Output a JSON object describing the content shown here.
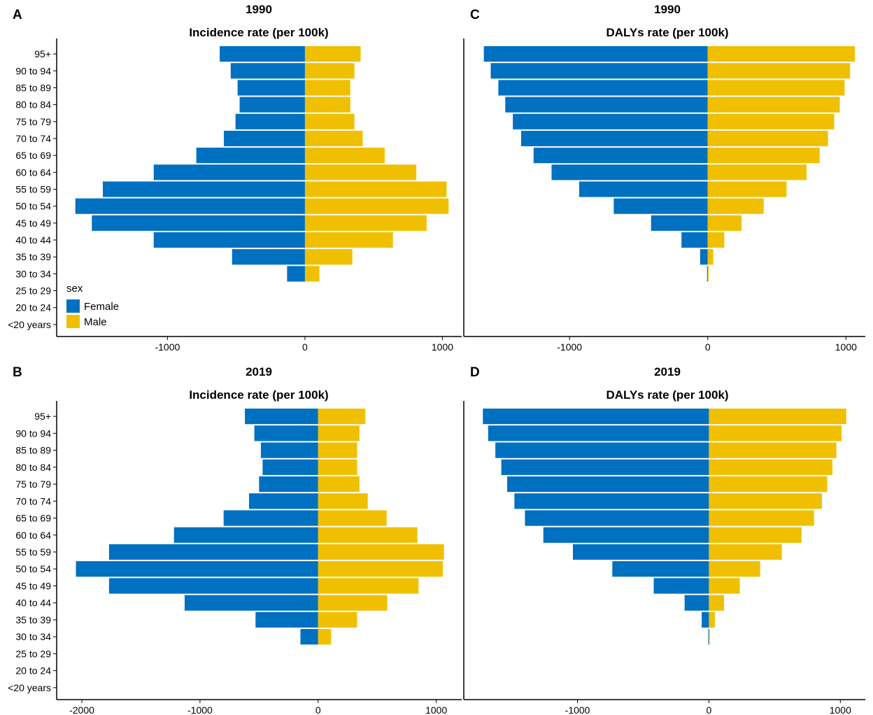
{
  "colors": {
    "female": "#0070C0",
    "male": "#F0C000"
  },
  "legend": {
    "title": "sex",
    "items": [
      "Female",
      "Male"
    ]
  },
  "chart_data": [
    {
      "panel": "A",
      "type": "bar",
      "orientation": "horizontal",
      "title": "1990",
      "subtitle": "Incidence rate (per 100k)",
      "categories": [
        "95+",
        "90 to 94",
        "85 to 89",
        "80 to 84",
        "75 to 79",
        "70 to 74",
        "65 to 69",
        "60 to 64",
        "55 to 59",
        "50 to 54",
        "45 to 49",
        "40 to 44",
        "35 to 39",
        "30 to 34",
        "25 to 29",
        "20 to 24",
        "<20 years"
      ],
      "series": [
        {
          "name": "Female",
          "values": [
            -620,
            -540,
            -490,
            -475,
            -505,
            -590,
            -790,
            -1100,
            -1470,
            -1670,
            -1550,
            -1100,
            -530,
            -130,
            0,
            0,
            0
          ]
        },
        {
          "name": "Male",
          "values": [
            405,
            360,
            330,
            330,
            360,
            420,
            580,
            810,
            1030,
            1045,
            885,
            640,
            345,
            105,
            0,
            0,
            0
          ]
        }
      ],
      "xlim": [
        -1760,
        1140
      ],
      "xticks": [
        -1000,
        0,
        1000
      ],
      "xticklabels": [
        "-1000",
        "0",
        "1000"
      ],
      "show_legend": true
    },
    {
      "panel": "B",
      "type": "bar",
      "orientation": "horizontal",
      "title": "2019",
      "subtitle": "Incidence rate (per 100k)",
      "categories": [
        "95+",
        "90 to 94",
        "85 to 89",
        "80 to 84",
        "75 to 79",
        "70 to 74",
        "65 to 69",
        "60 to 64",
        "55 to 59",
        "50 to 54",
        "45 to 49",
        "40 to 44",
        "35 to 39",
        "30 to 34",
        "25 to 29",
        "20 to 24",
        "<20 years"
      ],
      "series": [
        {
          "name": "Female",
          "values": [
            -620,
            -540,
            -485,
            -470,
            -500,
            -585,
            -800,
            -1220,
            -1770,
            -2050,
            -1770,
            -1130,
            -530,
            -150,
            0,
            0,
            0
          ]
        },
        {
          "name": "Male",
          "values": [
            400,
            350,
            330,
            330,
            350,
            420,
            580,
            840,
            1065,
            1055,
            850,
            585,
            330,
            110,
            0,
            0,
            0
          ]
        }
      ],
      "xlim": [
        -2160,
        1215
      ],
      "xticks": [
        -2000,
        -1000,
        0,
        1000
      ],
      "xticklabels": [
        "-2000",
        "-1000",
        "0",
        "1000"
      ],
      "show_legend": false
    },
    {
      "panel": "C",
      "type": "bar",
      "orientation": "horizontal",
      "title": "1990",
      "subtitle": "DALYs rate (per 100k)",
      "categories": [
        "95+",
        "90 to 94",
        "85 to 89",
        "80 to 84",
        "75 to 79",
        "70 to 74",
        "65 to 69",
        "60 to 64",
        "55 to 59",
        "50 to 54",
        "45 to 49",
        "40 to 44",
        "35 to 39",
        "30 to 34",
        "25 to 29",
        "20 to 24",
        "<20 years"
      ],
      "series": [
        {
          "name": "Female",
          "values": [
            -1620,
            -1570,
            -1515,
            -1465,
            -1410,
            -1350,
            -1260,
            -1130,
            -930,
            -680,
            -410,
            -190,
            -55,
            -5,
            0,
            0,
            0
          ]
        },
        {
          "name": "Male",
          "values": [
            1065,
            1030,
            990,
            955,
            915,
            870,
            810,
            715,
            570,
            405,
            245,
            120,
            40,
            3,
            0,
            0,
            0
          ]
        }
      ],
      "xlim": [
        -1760,
        1140
      ],
      "xticks": [
        -1000,
        0,
        1000
      ],
      "xticklabels": [
        "-1000",
        "0",
        "1000"
      ],
      "show_legend": false
    },
    {
      "panel": "D",
      "type": "bar",
      "orientation": "horizontal",
      "title": "2019",
      "subtitle": "DALYs rate (per 100k)",
      "categories": [
        "95+",
        "90 to 94",
        "85 to 89",
        "80 to 84",
        "75 to 79",
        "70 to 74",
        "65 to 69",
        "60 to 64",
        "55 to 59",
        "50 to 54",
        "45 to 49",
        "40 to 44",
        "35 to 39",
        "30 to 34",
        "25 to 29",
        "20 to 24",
        "<20 years"
      ],
      "series": [
        {
          "name": "Female",
          "values": [
            -1720,
            -1680,
            -1625,
            -1580,
            -1535,
            -1480,
            -1400,
            -1260,
            -1035,
            -735,
            -420,
            -185,
            -55,
            -5,
            0,
            0,
            0
          ]
        },
        {
          "name": "Male",
          "values": [
            1045,
            1010,
            970,
            940,
            900,
            860,
            800,
            705,
            555,
            390,
            235,
            115,
            45,
            3,
            0,
            0,
            0
          ]
        }
      ],
      "xlim": [
        -1860,
        1190
      ],
      "xticks": [
        -1000,
        0,
        1000
      ],
      "xticklabels": [
        "-1000",
        "0",
        "1000"
      ],
      "show_legend": false
    }
  ]
}
